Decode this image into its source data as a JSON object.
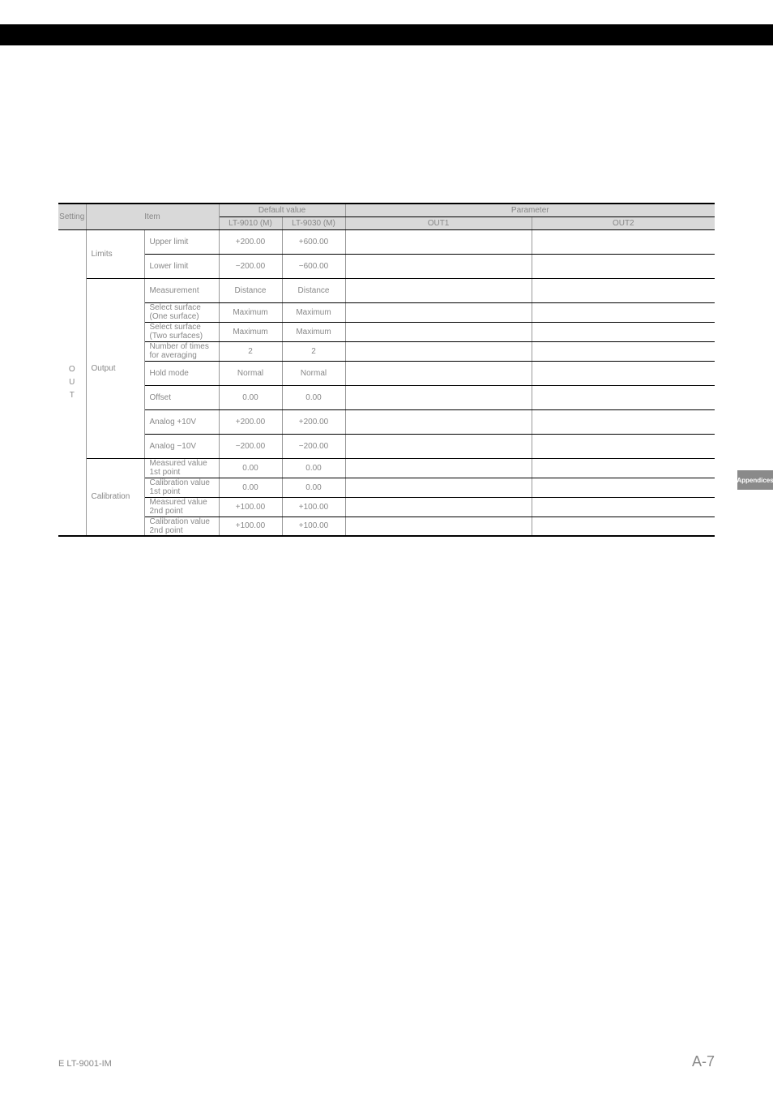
{
  "blackBar": true,
  "sideTab": "Appendices",
  "footer": {
    "left": "E LT-9001-IM",
    "right": "A-7"
  },
  "table": {
    "headers": {
      "setting": "Setting",
      "item": "Item",
      "default": "Default value",
      "parameter": "Parameter",
      "def1": "LT-9010 (M)",
      "def2": "LT-9030 (M)",
      "p1": "OUT1",
      "p2": "OUT2"
    },
    "settingGroup": "O\nU\nT",
    "groups": [
      {
        "label": "Limits",
        "rows": [
          {
            "item": "Upper limit",
            "d1": "+200.00",
            "d2": "+600.00",
            "h": "data"
          },
          {
            "item": "Lower limit",
            "d1": "−200.00",
            "d2": "−600.00",
            "h": "data"
          }
        ]
      },
      {
        "label": "Output",
        "rows": [
          {
            "item": "Measurement",
            "d1": "Distance",
            "d2": "Distance",
            "h": "data"
          },
          {
            "item": "Select surface\n(One surface)",
            "d1": "Maximum",
            "d2": "Maximum",
            "h": "compact"
          },
          {
            "item": "Select surface\n(Two surfaces)",
            "d1": "Maximum",
            "d2": "Maximum",
            "h": "compact"
          },
          {
            "item": "Number of times\nfor averaging",
            "d1": "2",
            "d2": "2",
            "h": "compact"
          },
          {
            "item": "Hold mode",
            "d1": "Normal",
            "d2": "Normal",
            "h": "data"
          },
          {
            "item": "Offset",
            "d1": "0.00",
            "d2": "0.00",
            "h": "data"
          },
          {
            "item": "Analog +10V",
            "d1": "+200.00",
            "d2": "+200.00",
            "h": "data"
          },
          {
            "item": "Analog −10V",
            "d1": "−200.00",
            "d2": "−200.00",
            "h": "data"
          }
        ]
      },
      {
        "label": "Calibration",
        "rows": [
          {
            "item": "Measured value\n1st point",
            "d1": "0.00",
            "d2": "0.00",
            "h": "compact"
          },
          {
            "item": "Calibration value\n1st point",
            "d1": "0.00",
            "d2": "0.00",
            "h": "compact"
          },
          {
            "item": "Measured value\n2nd point",
            "d1": "+100.00",
            "d2": "+100.00",
            "h": "compact"
          },
          {
            "item": "Calibration value\n2nd point",
            "d1": "+100.00",
            "d2": "+100.00",
            "h": "compact"
          }
        ]
      }
    ]
  }
}
